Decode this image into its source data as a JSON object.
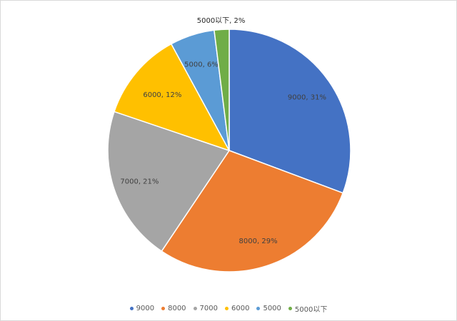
{
  "chart_data": {
    "type": "pie",
    "title": "",
    "categories": [
      "9000",
      "8000",
      "7000",
      "6000",
      "5000",
      "5000以下"
    ],
    "values": [
      31,
      29,
      21,
      12,
      6,
      2
    ],
    "labels": [
      "9000, 31%",
      "8000, 29%",
      "7000, 21%",
      "6000, 12%",
      "5000, 6%",
      "5000以下, 2%"
    ],
    "colors": [
      "#4472C4",
      "#ED7D31",
      "#A5A5A5",
      "#FFC000",
      "#5B9BD5",
      "#70AD47"
    ],
    "legend_position": "bottom"
  },
  "legend": {
    "items": [
      {
        "label": "9000",
        "color": "#4472C4"
      },
      {
        "label": "8000",
        "color": "#ED7D31"
      },
      {
        "label": "7000",
        "color": "#A5A5A5"
      },
      {
        "label": "6000",
        "color": "#FFC000"
      },
      {
        "label": "5000",
        "color": "#5B9BD5"
      },
      {
        "label": "5000以下",
        "color": "#70AD47"
      }
    ]
  }
}
